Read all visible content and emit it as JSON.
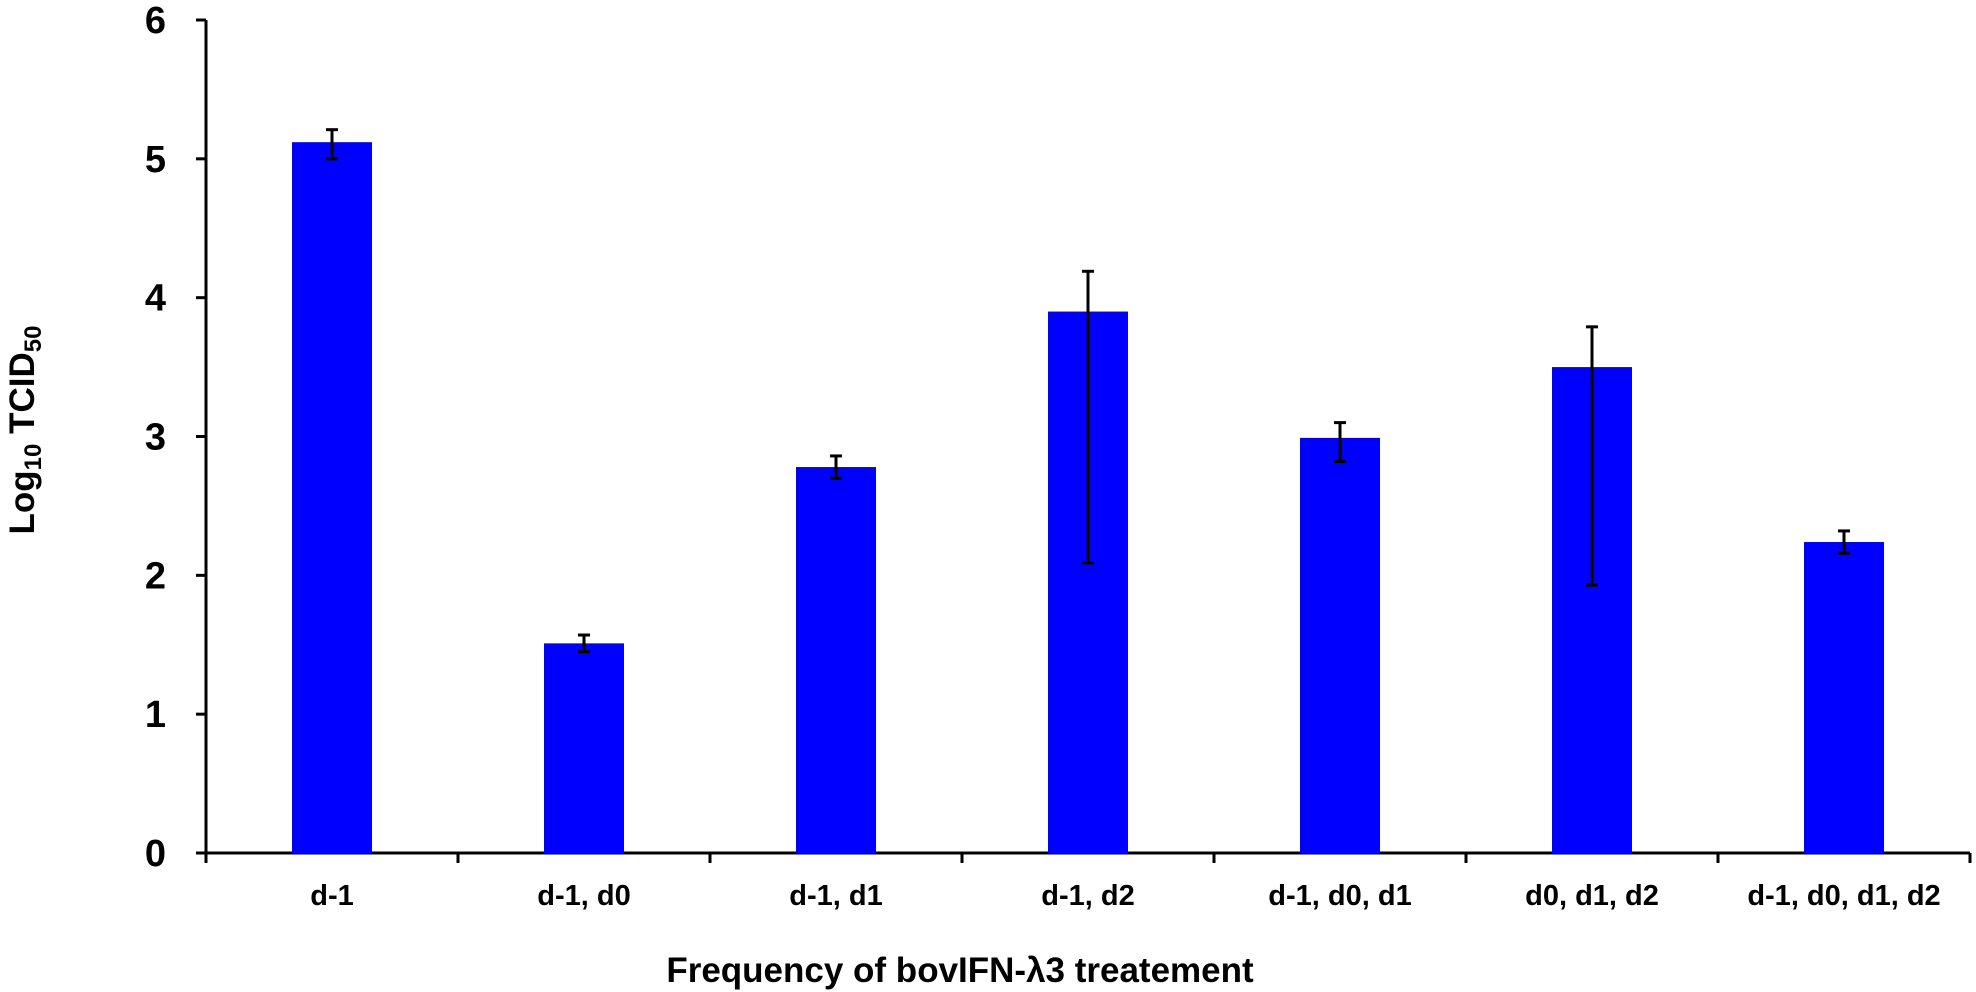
{
  "colors": {
    "bar": "#0000ff",
    "axis": "#000000",
    "error_bar": "#000000",
    "background": "#ffffff"
  },
  "chart_data": {
    "type": "bar",
    "title": "",
    "xlabel": "Frequency of bovIFN-λ3 treatement",
    "ylabel": {
      "main": "Log",
      "sub1": "10",
      "mid": " TCID",
      "sub2": "50"
    },
    "categories": [
      "d-1",
      "d-1, d0",
      "d-1, d1",
      "d-1, d2",
      "d-1, d0, d1",
      "d0, d1, d2",
      "d-1, d0, d1, d2"
    ],
    "values": [
      5.12,
      1.51,
      2.78,
      3.9,
      2.99,
      3.5,
      2.24
    ],
    "error_low": [
      5.0,
      1.45,
      2.7,
      2.09,
      2.82,
      1.93,
      2.16
    ],
    "error_high": [
      5.21,
      1.57,
      2.86,
      4.19,
      3.1,
      3.79,
      2.32
    ],
    "yticks": [
      0,
      1,
      2,
      3,
      4,
      5,
      6
    ],
    "ytick_labels": [
      "0",
      "1",
      "2",
      "3",
      "4",
      "5",
      "6"
    ],
    "ylim": [
      0,
      6
    ],
    "grid": false,
    "legend": "none"
  }
}
